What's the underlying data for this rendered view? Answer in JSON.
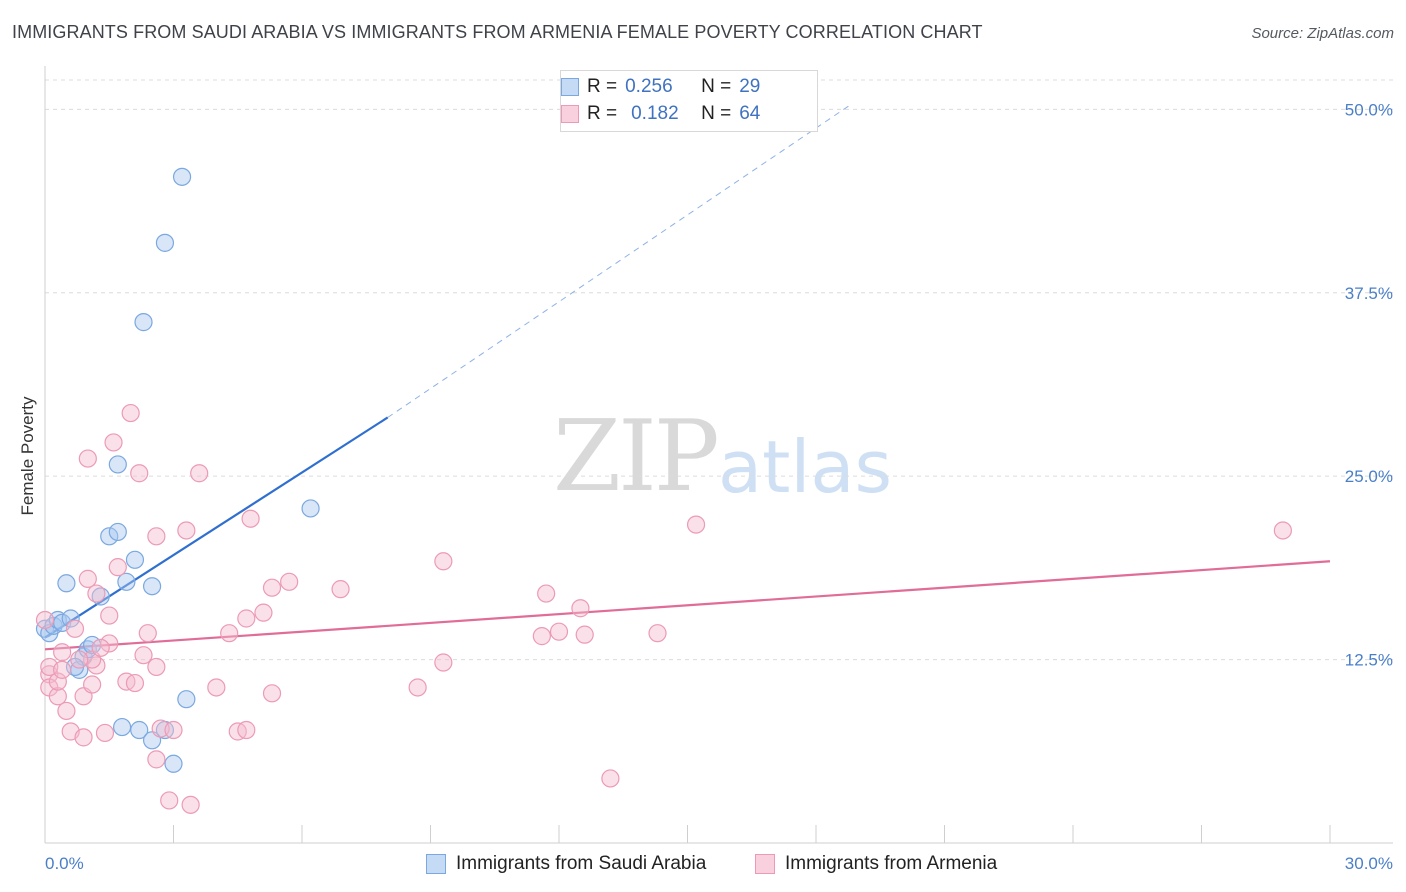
{
  "title": "IMMIGRANTS FROM SAUDI ARABIA VS IMMIGRANTS FROM ARMENIA FEMALE POVERTY CORRELATION CHART",
  "source": "Source: ZipAtlas.com",
  "watermark": {
    "zip": "ZIP",
    "atlas": "atlas"
  },
  "legend": {
    "series1": {
      "r_label": "R = ",
      "r_value": "0.256",
      "n_label": "N = ",
      "n_value": "29"
    },
    "series2": {
      "r_label": "R = ",
      "r_value": "0.182",
      "n_label": "N = ",
      "n_value": "64"
    }
  },
  "colors": {
    "blue_fill": "#a9c8ef",
    "blue_stroke": "#7aa8e0",
    "blue_line": "#2f6fcf",
    "pink_fill": "#f5bccf",
    "pink_stroke": "#ec9ab6",
    "pink_line": "#e06c97",
    "grid": "#dcdcdc",
    "tick_text": "#4a7fc8"
  },
  "chart_data": {
    "type": "scatter",
    "title": "IMMIGRANTS FROM SAUDI ARABIA VS IMMIGRANTS FROM ARMENIA FEMALE POVERTY CORRELATION CHART",
    "xlabel": "",
    "ylabel": "Female Poverty",
    "xlim": [
      0,
      30
    ],
    "ylim": [
      0,
      52
    ],
    "x_tick_labels": [
      "0.0%",
      "30.0%"
    ],
    "y_ticks": [
      12.5,
      25.0,
      37.5,
      50.0
    ],
    "y_tick_labels": [
      "12.5%",
      "25.0%",
      "37.5%",
      "50.0%"
    ],
    "grid": true,
    "series": [
      {
        "name": "Immigrants from Saudi Arabia",
        "color": "blue",
        "points": [
          [
            0.0,
            14.6
          ],
          [
            0.1,
            14.3
          ],
          [
            0.2,
            14.8
          ],
          [
            0.3,
            15.2
          ],
          [
            0.4,
            15.0
          ],
          [
            0.6,
            15.3
          ],
          [
            0.5,
            17.7
          ],
          [
            0.8,
            11.8
          ],
          [
            0.9,
            12.7
          ],
          [
            1.0,
            13.2
          ],
          [
            1.1,
            13.5
          ],
          [
            1.3,
            16.8
          ],
          [
            1.5,
            20.9
          ],
          [
            1.7,
            21.2
          ],
          [
            1.9,
            17.8
          ],
          [
            2.1,
            19.3
          ],
          [
            2.5,
            17.5
          ],
          [
            1.7,
            25.8
          ],
          [
            2.3,
            35.5
          ],
          [
            2.8,
            40.9
          ],
          [
            3.2,
            45.4
          ],
          [
            6.2,
            22.8
          ],
          [
            1.8,
            7.9
          ],
          [
            2.2,
            7.7
          ],
          [
            2.5,
            7.0
          ],
          [
            2.8,
            7.7
          ],
          [
            3.0,
            5.4
          ],
          [
            3.3,
            9.8
          ],
          [
            0.7,
            12.0
          ]
        ],
        "trend": {
          "x1": 0.0,
          "y1": 14.0,
          "x2": 8.0,
          "y2": 29.0,
          "dashed_x2": 18.8,
          "dashed_y2": 50.3
        }
      },
      {
        "name": "Immigrants from Armenia",
        "color": "pink",
        "points": [
          [
            0.0,
            15.2
          ],
          [
            0.1,
            11.5
          ],
          [
            0.1,
            12.0
          ],
          [
            0.1,
            10.6
          ],
          [
            0.3,
            10.0
          ],
          [
            0.3,
            11.0
          ],
          [
            0.4,
            11.8
          ],
          [
            0.5,
            9.0
          ],
          [
            0.6,
            7.6
          ],
          [
            0.7,
            14.6
          ],
          [
            0.9,
            10.0
          ],
          [
            0.9,
            7.2
          ],
          [
            1.0,
            18.0
          ],
          [
            1.1,
            10.8
          ],
          [
            1.2,
            12.1
          ],
          [
            1.4,
            7.5
          ],
          [
            1.5,
            15.5
          ],
          [
            1.5,
            13.6
          ],
          [
            1.6,
            27.3
          ],
          [
            1.7,
            18.8
          ],
          [
            1.9,
            11.0
          ],
          [
            2.1,
            10.9
          ],
          [
            2.2,
            25.2
          ],
          [
            2.3,
            12.8
          ],
          [
            2.4,
            14.3
          ],
          [
            2.6,
            12.0
          ],
          [
            2.6,
            5.7
          ],
          [
            2.6,
            20.9
          ],
          [
            2.7,
            7.8
          ],
          [
            2.9,
            2.9
          ],
          [
            3.0,
            7.7
          ],
          [
            2.0,
            29.3
          ],
          [
            1.0,
            26.2
          ],
          [
            3.3,
            21.3
          ],
          [
            3.4,
            2.6
          ],
          [
            3.6,
            25.2
          ],
          [
            4.0,
            10.6
          ],
          [
            4.3,
            14.3
          ],
          [
            4.5,
            7.6
          ],
          [
            4.7,
            7.7
          ],
          [
            4.7,
            15.3
          ],
          [
            5.1,
            15.7
          ],
          [
            5.3,
            17.4
          ],
          [
            5.3,
            10.2
          ],
          [
            5.7,
            17.8
          ],
          [
            4.8,
            22.1
          ],
          [
            6.9,
            17.3
          ],
          [
            8.7,
            10.6
          ],
          [
            9.3,
            19.2
          ],
          [
            9.3,
            12.3
          ],
          [
            11.7,
            17.0
          ],
          [
            11.6,
            14.1
          ],
          [
            12.0,
            14.4
          ],
          [
            12.5,
            16.0
          ],
          [
            12.6,
            14.2
          ],
          [
            13.2,
            4.4
          ],
          [
            14.3,
            14.3
          ],
          [
            15.2,
            21.7
          ],
          [
            28.9,
            21.3
          ],
          [
            1.1,
            12.5
          ],
          [
            1.3,
            13.3
          ],
          [
            0.8,
            12.5
          ],
          [
            0.4,
            13.0
          ],
          [
            1.2,
            17.0
          ]
        ],
        "trend": {
          "x1": 0.0,
          "y1": 13.2,
          "x2": 30.0,
          "y2": 19.2
        }
      }
    ]
  }
}
